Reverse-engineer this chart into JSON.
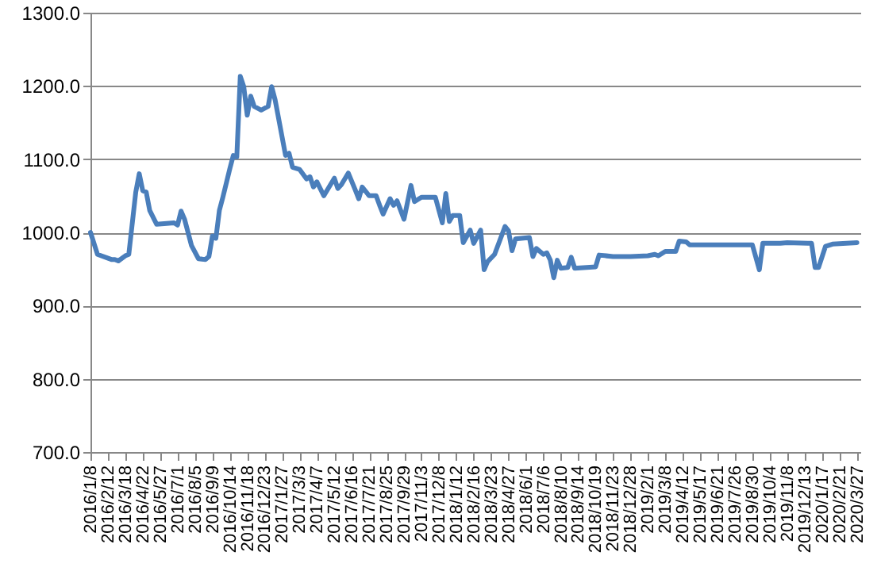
{
  "chart_data": {
    "type": "line",
    "x": [
      "2016-01-08",
      "2016-01-22",
      "2016-02-19",
      "2016-02-26",
      "2016-03-04",
      "2016-03-18",
      "2016-03-25",
      "2016-04-08",
      "2016-04-15",
      "2016-04-22",
      "2016-04-29",
      "2016-05-06",
      "2016-05-20",
      "2016-06-24",
      "2016-07-01",
      "2016-07-08",
      "2016-07-15",
      "2016-07-29",
      "2016-08-12",
      "2016-08-26",
      "2016-09-02",
      "2016-09-09",
      "2016-09-16",
      "2016-09-23",
      "2016-09-30",
      "2016-10-14",
      "2016-10-21",
      "2016-10-28",
      "2016-11-04",
      "2016-11-11",
      "2016-11-18",
      "2016-11-25",
      "2016-12-02",
      "2016-12-16",
      "2016-12-30",
      "2017-01-06",
      "2017-01-13",
      "2017-02-03",
      "2017-02-10",
      "2017-02-17",
      "2017-03-03",
      "2017-03-17",
      "2017-03-24",
      "2017-03-31",
      "2017-04-07",
      "2017-04-21",
      "2017-05-12",
      "2017-05-19",
      "2017-05-26",
      "2017-06-09",
      "2017-06-23",
      "2017-06-30",
      "2017-07-07",
      "2017-07-21",
      "2017-08-04",
      "2017-08-11",
      "2017-08-18",
      "2017-09-01",
      "2017-09-08",
      "2017-09-15",
      "2017-09-29",
      "2017-10-13",
      "2017-10-20",
      "2017-11-03",
      "2017-12-01",
      "2017-12-15",
      "2017-12-22",
      "2017-12-29",
      "2018-01-05",
      "2018-01-19",
      "2018-01-26",
      "2018-02-09",
      "2018-02-16",
      "2018-03-02",
      "2018-03-09",
      "2018-03-16",
      "2018-03-30",
      "2018-04-20",
      "2018-04-27",
      "2018-05-04",
      "2018-05-11",
      "2018-06-08",
      "2018-06-15",
      "2018-06-22",
      "2018-07-06",
      "2018-07-13",
      "2018-07-20",
      "2018-07-27",
      "2018-08-03",
      "2018-08-10",
      "2018-08-24",
      "2018-08-31",
      "2018-09-07",
      "2018-10-19",
      "2018-10-26",
      "2018-11-23",
      "2018-12-28",
      "2019-02-01",
      "2019-02-15",
      "2019-02-22",
      "2019-03-08",
      "2019-03-29",
      "2019-04-05",
      "2019-04-19",
      "2019-04-26",
      "2019-06-21",
      "2019-08-02",
      "2019-08-30",
      "2019-09-13",
      "2019-09-20",
      "2019-10-25",
      "2019-11-08",
      "2019-12-27",
      "2020-01-03",
      "2020-01-10",
      "2020-01-24",
      "2020-02-07",
      "2020-03-27"
    ],
    "series": [
      {
        "color": "#4a7ebb",
        "values": [
          1000,
          970,
          963,
          963,
          961,
          968,
          970,
          1055,
          1080,
          1057,
          1055,
          1030,
          1011,
          1013,
          1010,
          1029,
          1018,
          982,
          964,
          963,
          967,
          995,
          992,
          1030,
          1048,
          1087,
          1105,
          1103,
          1213,
          1199,
          1160,
          1186,
          1172,
          1167,
          1172,
          1199,
          1181,
          1105,
          1108,
          1089,
          1086,
          1073,
          1076,
          1062,
          1069,
          1050,
          1074,
          1060,
          1065,
          1081,
          1058,
          1046,
          1062,
          1050,
          1050,
          1037,
          1025,
          1046,
          1037,
          1043,
          1018,
          1064,
          1042,
          1048,
          1048,
          1013,
          1053,
          1015,
          1023,
          1023,
          986,
          1003,
          985,
          1003,
          949,
          960,
          970,
          1008,
          1002,
          975,
          991,
          993,
          967,
          978,
          970,
          972,
          962,
          938,
          962,
          951,
          952,
          966,
          951,
          953,
          969,
          967,
          967,
          968,
          970,
          968,
          974,
          974,
          988,
          987,
          983,
          983,
          983,
          983,
          949,
          985,
          985,
          986,
          985,
          952,
          952,
          981,
          984,
          986
        ]
      }
    ],
    "xlim": [
      "2016-01-08",
      "2020-04-03"
    ],
    "xticks": [
      {
        "value": "2016-01-08",
        "label": "2016/1/8"
      },
      {
        "value": "2016-02-12",
        "label": "2016/2/12"
      },
      {
        "value": "2016-03-18",
        "label": "2016/3/18"
      },
      {
        "value": "2016-04-22",
        "label": "2016/4/22"
      },
      {
        "value": "2016-05-27",
        "label": "2016/5/27"
      },
      {
        "value": "2016-07-01",
        "label": "2016/7/1"
      },
      {
        "value": "2016-08-05",
        "label": "2016/8/5"
      },
      {
        "value": "2016-09-09",
        "label": "2016/9/9"
      },
      {
        "value": "2016-10-14",
        "label": "2016/10/14"
      },
      {
        "value": "2016-11-18",
        "label": "2016/11/18"
      },
      {
        "value": "2016-12-23",
        "label": "2016/12/23"
      },
      {
        "value": "2017-01-27",
        "label": "2017/1/27"
      },
      {
        "value": "2017-03-03",
        "label": "2017/3/3"
      },
      {
        "value": "2017-04-07",
        "label": "2017/4/7"
      },
      {
        "value": "2017-05-12",
        "label": "2017/5/12"
      },
      {
        "value": "2017-06-16",
        "label": "2017/6/16"
      },
      {
        "value": "2017-07-21",
        "label": "2017/7/21"
      },
      {
        "value": "2017-08-25",
        "label": "2017/8/25"
      },
      {
        "value": "2017-09-29",
        "label": "2017/9/29"
      },
      {
        "value": "2017-11-03",
        "label": "2017/11/3"
      },
      {
        "value": "2017-12-08",
        "label": "2017/12/8"
      },
      {
        "value": "2018-01-12",
        "label": "2018/1/12"
      },
      {
        "value": "2018-02-16",
        "label": "2018/2/16"
      },
      {
        "value": "2018-03-23",
        "label": "2018/3/23"
      },
      {
        "value": "2018-04-27",
        "label": "2018/4/27"
      },
      {
        "value": "2018-06-01",
        "label": "2018/6/1"
      },
      {
        "value": "2018-07-06",
        "label": "2018/7/6"
      },
      {
        "value": "2018-08-10",
        "label": "2018/8/10"
      },
      {
        "value": "2018-09-14",
        "label": "2018/9/14"
      },
      {
        "value": "2018-10-19",
        "label": "2018/10/19"
      },
      {
        "value": "2018-11-23",
        "label": "2018/11/23"
      },
      {
        "value": "2018-12-28",
        "label": "2018/12/28"
      },
      {
        "value": "2019-02-01",
        "label": "2019/2/1"
      },
      {
        "value": "2019-03-08",
        "label": "2019/3/8"
      },
      {
        "value": "2019-04-12",
        "label": "2019/4/12"
      },
      {
        "value": "2019-05-17",
        "label": "2019/5/17"
      },
      {
        "value": "2019-06-21",
        "label": "2019/6/21"
      },
      {
        "value": "2019-07-26",
        "label": "2019/7/26"
      },
      {
        "value": "2019-08-30",
        "label": "2019/8/30"
      },
      {
        "value": "2019-10-04",
        "label": "2019/10/4"
      },
      {
        "value": "2019-11-08",
        "label": "2019/11/8"
      },
      {
        "value": "2019-12-13",
        "label": "2019/12/13"
      },
      {
        "value": "2020-01-17",
        "label": "2020/1/17"
      },
      {
        "value": "2020-02-21",
        "label": "2020/2/21"
      },
      {
        "value": "2020-03-27",
        "label": "2020/3/27"
      }
    ],
    "ylim": [
      700,
      1300
    ],
    "yticks": [
      {
        "value": 700,
        "label": "700.0"
      },
      {
        "value": 800,
        "label": "800.0"
      },
      {
        "value": 900,
        "label": "900.0"
      },
      {
        "value": 1000,
        "label": "1000.0"
      },
      {
        "value": 1100,
        "label": "1100.0"
      },
      {
        "value": 1200,
        "label": "1200.0"
      },
      {
        "value": 1300,
        "label": "1300.0"
      }
    ],
    "grid": "y",
    "marker": "none",
    "line_style": "solid"
  }
}
